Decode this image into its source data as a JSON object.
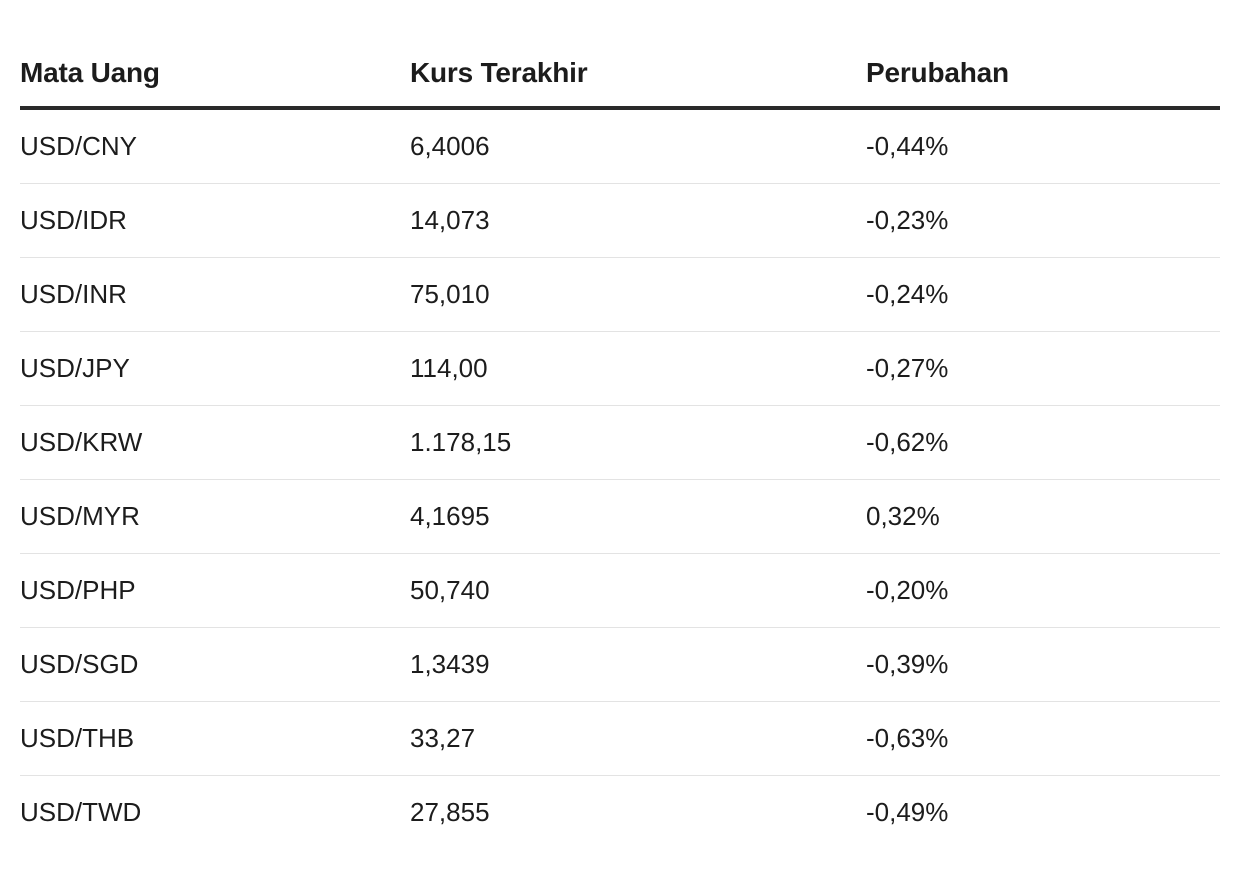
{
  "table": {
    "headers": [
      "Mata Uang",
      "Kurs Terakhir",
      "Perubahan"
    ],
    "rows": [
      [
        "USD/CNY",
        "6,4006",
        "-0,44%"
      ],
      [
        "USD/IDR",
        "14,073",
        "-0,23%"
      ],
      [
        "USD/INR",
        "75,010",
        "-0,24%"
      ],
      [
        "USD/JPY",
        "114,00",
        "-0,27%"
      ],
      [
        "USD/KRW",
        "1.178,15",
        "-0,62%"
      ],
      [
        "USD/MYR",
        "4,1695",
        "0,32%"
      ],
      [
        "USD/PHP",
        "50,740",
        "-0,20%"
      ],
      [
        "USD/SGD",
        "1,3439",
        "-0,39%"
      ],
      [
        "USD/THB",
        "33,27",
        "-0,63%"
      ],
      [
        "USD/TWD",
        "27,855",
        "-0,49%"
      ]
    ]
  }
}
